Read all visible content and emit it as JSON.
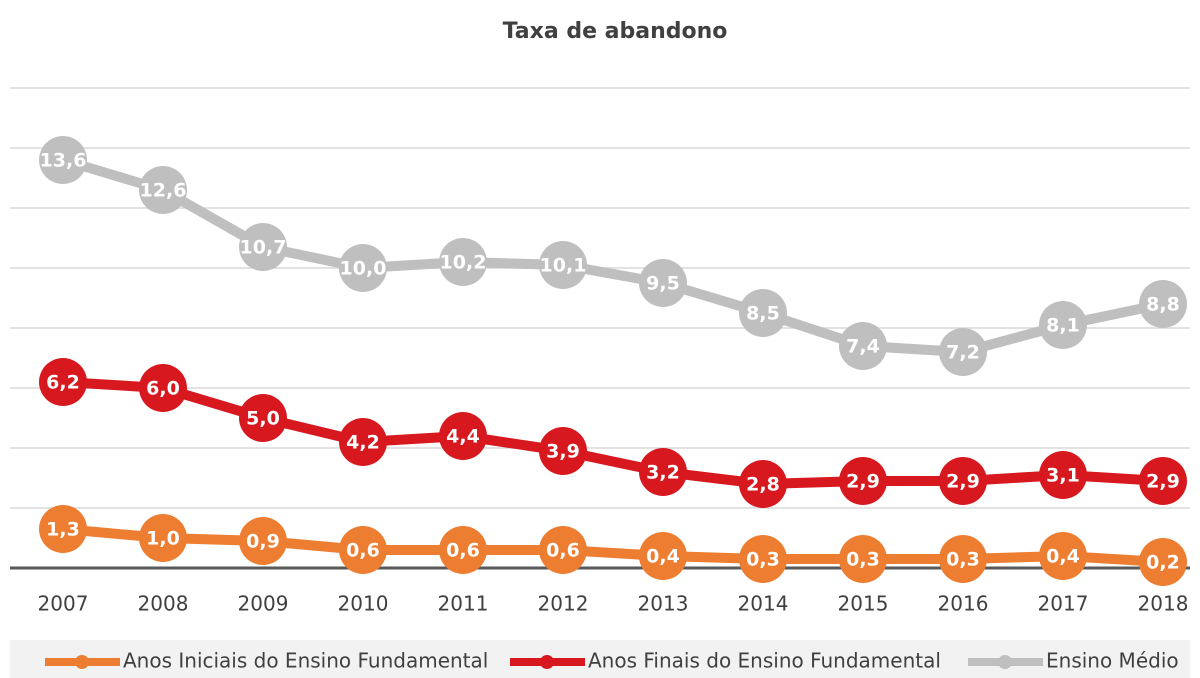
{
  "chart_data": {
    "type": "line",
    "title": "Taxa de abandono",
    "categories": [
      "2007",
      "2008",
      "2009",
      "2010",
      "2011",
      "2012",
      "2013",
      "2014",
      "2015",
      "2016",
      "2017",
      "2018"
    ],
    "ylim": [
      0,
      16
    ],
    "yticks": [
      0,
      2,
      4,
      6,
      8,
      10,
      12,
      14,
      16
    ],
    "grid": true,
    "series": [
      {
        "name": "Anos Iniciais do Ensino Fundamental",
        "color": "#ed7d31",
        "values": [
          1.3,
          1.0,
          0.9,
          0.6,
          0.6,
          0.6,
          0.4,
          0.3,
          0.3,
          0.3,
          0.4,
          0.2
        ],
        "value_labels": [
          "1,3",
          "1,0",
          "0,9",
          "0,6",
          "0,6",
          "0,6",
          "0,4",
          "0,3",
          "0,3",
          "0,3",
          "0,4",
          "0,2"
        ]
      },
      {
        "name": "Anos Finais do Ensino Fundamental",
        "color": "#d7191f",
        "values": [
          6.2,
          6.0,
          5.0,
          4.2,
          4.4,
          3.9,
          3.2,
          2.8,
          2.9,
          2.9,
          3.1,
          2.9
        ],
        "value_labels": [
          "6,2",
          "6,0",
          "5,0",
          "4,2",
          "4,4",
          "3,9",
          "3,2",
          "2,8",
          "2,9",
          "2,9",
          "3,1",
          "2,9"
        ]
      },
      {
        "name": "Ensino Médio",
        "color": "#bfbfbf",
        "values": [
          13.6,
          12.6,
          10.7,
          10.0,
          10.2,
          10.1,
          9.5,
          8.5,
          7.4,
          7.2,
          8.1,
          8.8
        ],
        "value_labels": [
          "13,6",
          "12,6",
          "10,7",
          "10,0",
          "10,2",
          "10,1",
          "9,5",
          "8,5",
          "7,4",
          "7,2",
          "8,1",
          "8,8"
        ]
      }
    ]
  }
}
